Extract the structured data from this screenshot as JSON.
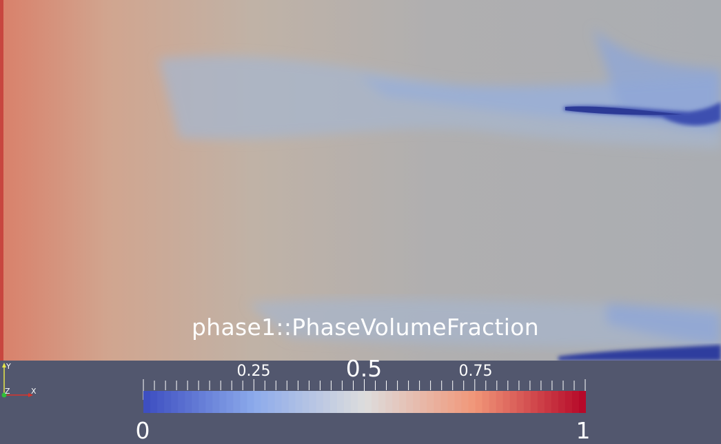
{
  "field": {
    "title": "phase1::PhaseVolumeFraction"
  },
  "colorbar": {
    "labels": {
      "min": "0",
      "q1": "0.25",
      "mid": "0.5",
      "q3": "0.75",
      "max": "1"
    },
    "range": [
      0,
      1
    ],
    "colormap": "cool-to-warm",
    "colors": {
      "low": "#3b4cc0",
      "mid": "#dddddd",
      "high": "#b40426"
    }
  },
  "axes": {
    "y": "Y",
    "z": "Z",
    "x": "X"
  },
  "colors": {
    "background": "#52576e",
    "text": "#ffffff"
  }
}
